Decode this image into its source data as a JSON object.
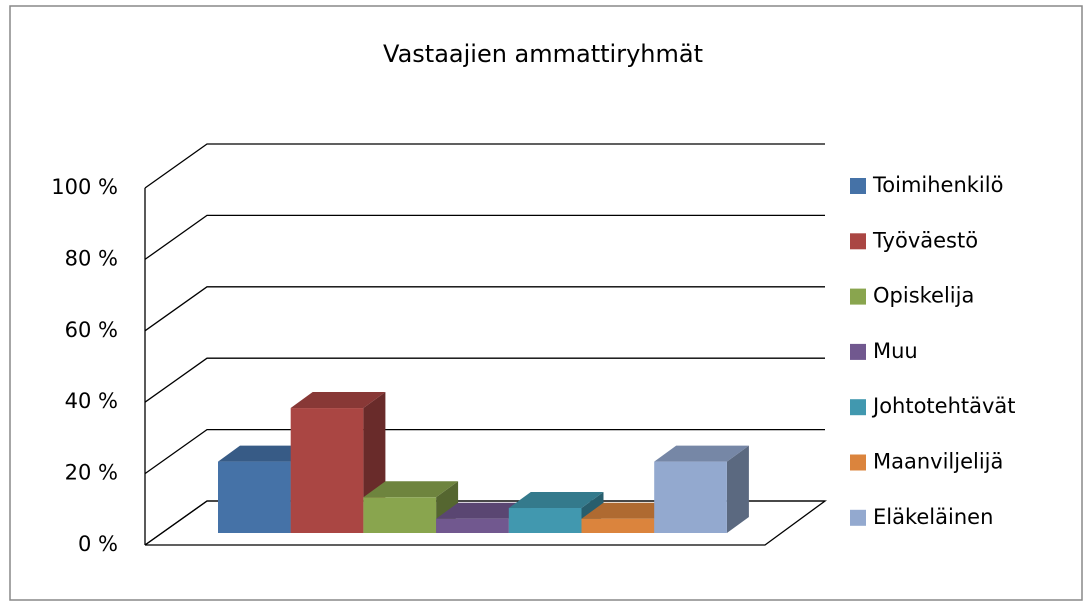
{
  "chart_data": {
    "type": "bar3d",
    "title": "Vastaajien ammattiryhmät",
    "categories": [
      null
    ],
    "series": [
      {
        "name": "Toimihenkilö",
        "color": "#4572a7",
        "values": [
          20
        ]
      },
      {
        "name": "Työväestö",
        "color": "#aa4643",
        "values": [
          35
        ]
      },
      {
        "name": "Opiskelija",
        "color": "#89a54e",
        "values": [
          10
        ]
      },
      {
        "name": "Muu",
        "color": "#71588f",
        "values": [
          4
        ]
      },
      {
        "name": "Johtotehtävät",
        "color": "#4198af",
        "values": [
          7
        ]
      },
      {
        "name": "Maanviljelijä",
        "color": "#db843d",
        "values": [
          4
        ]
      },
      {
        "name": "Eläkeläinen",
        "color": "#93a9cf",
        "values": [
          20
        ]
      }
    ],
    "ylim": [
      0,
      100
    ],
    "yticks": [
      {
        "value": 0,
        "label": "0 %"
      },
      {
        "value": 20,
        "label": "20 %"
      },
      {
        "value": 40,
        "label": "40 %"
      },
      {
        "value": 60,
        "label": "60 %"
      },
      {
        "value": 80,
        "label": "80 %"
      },
      {
        "value": 100,
        "label": "100 %"
      }
    ],
    "grid": true,
    "legend": "right"
  }
}
